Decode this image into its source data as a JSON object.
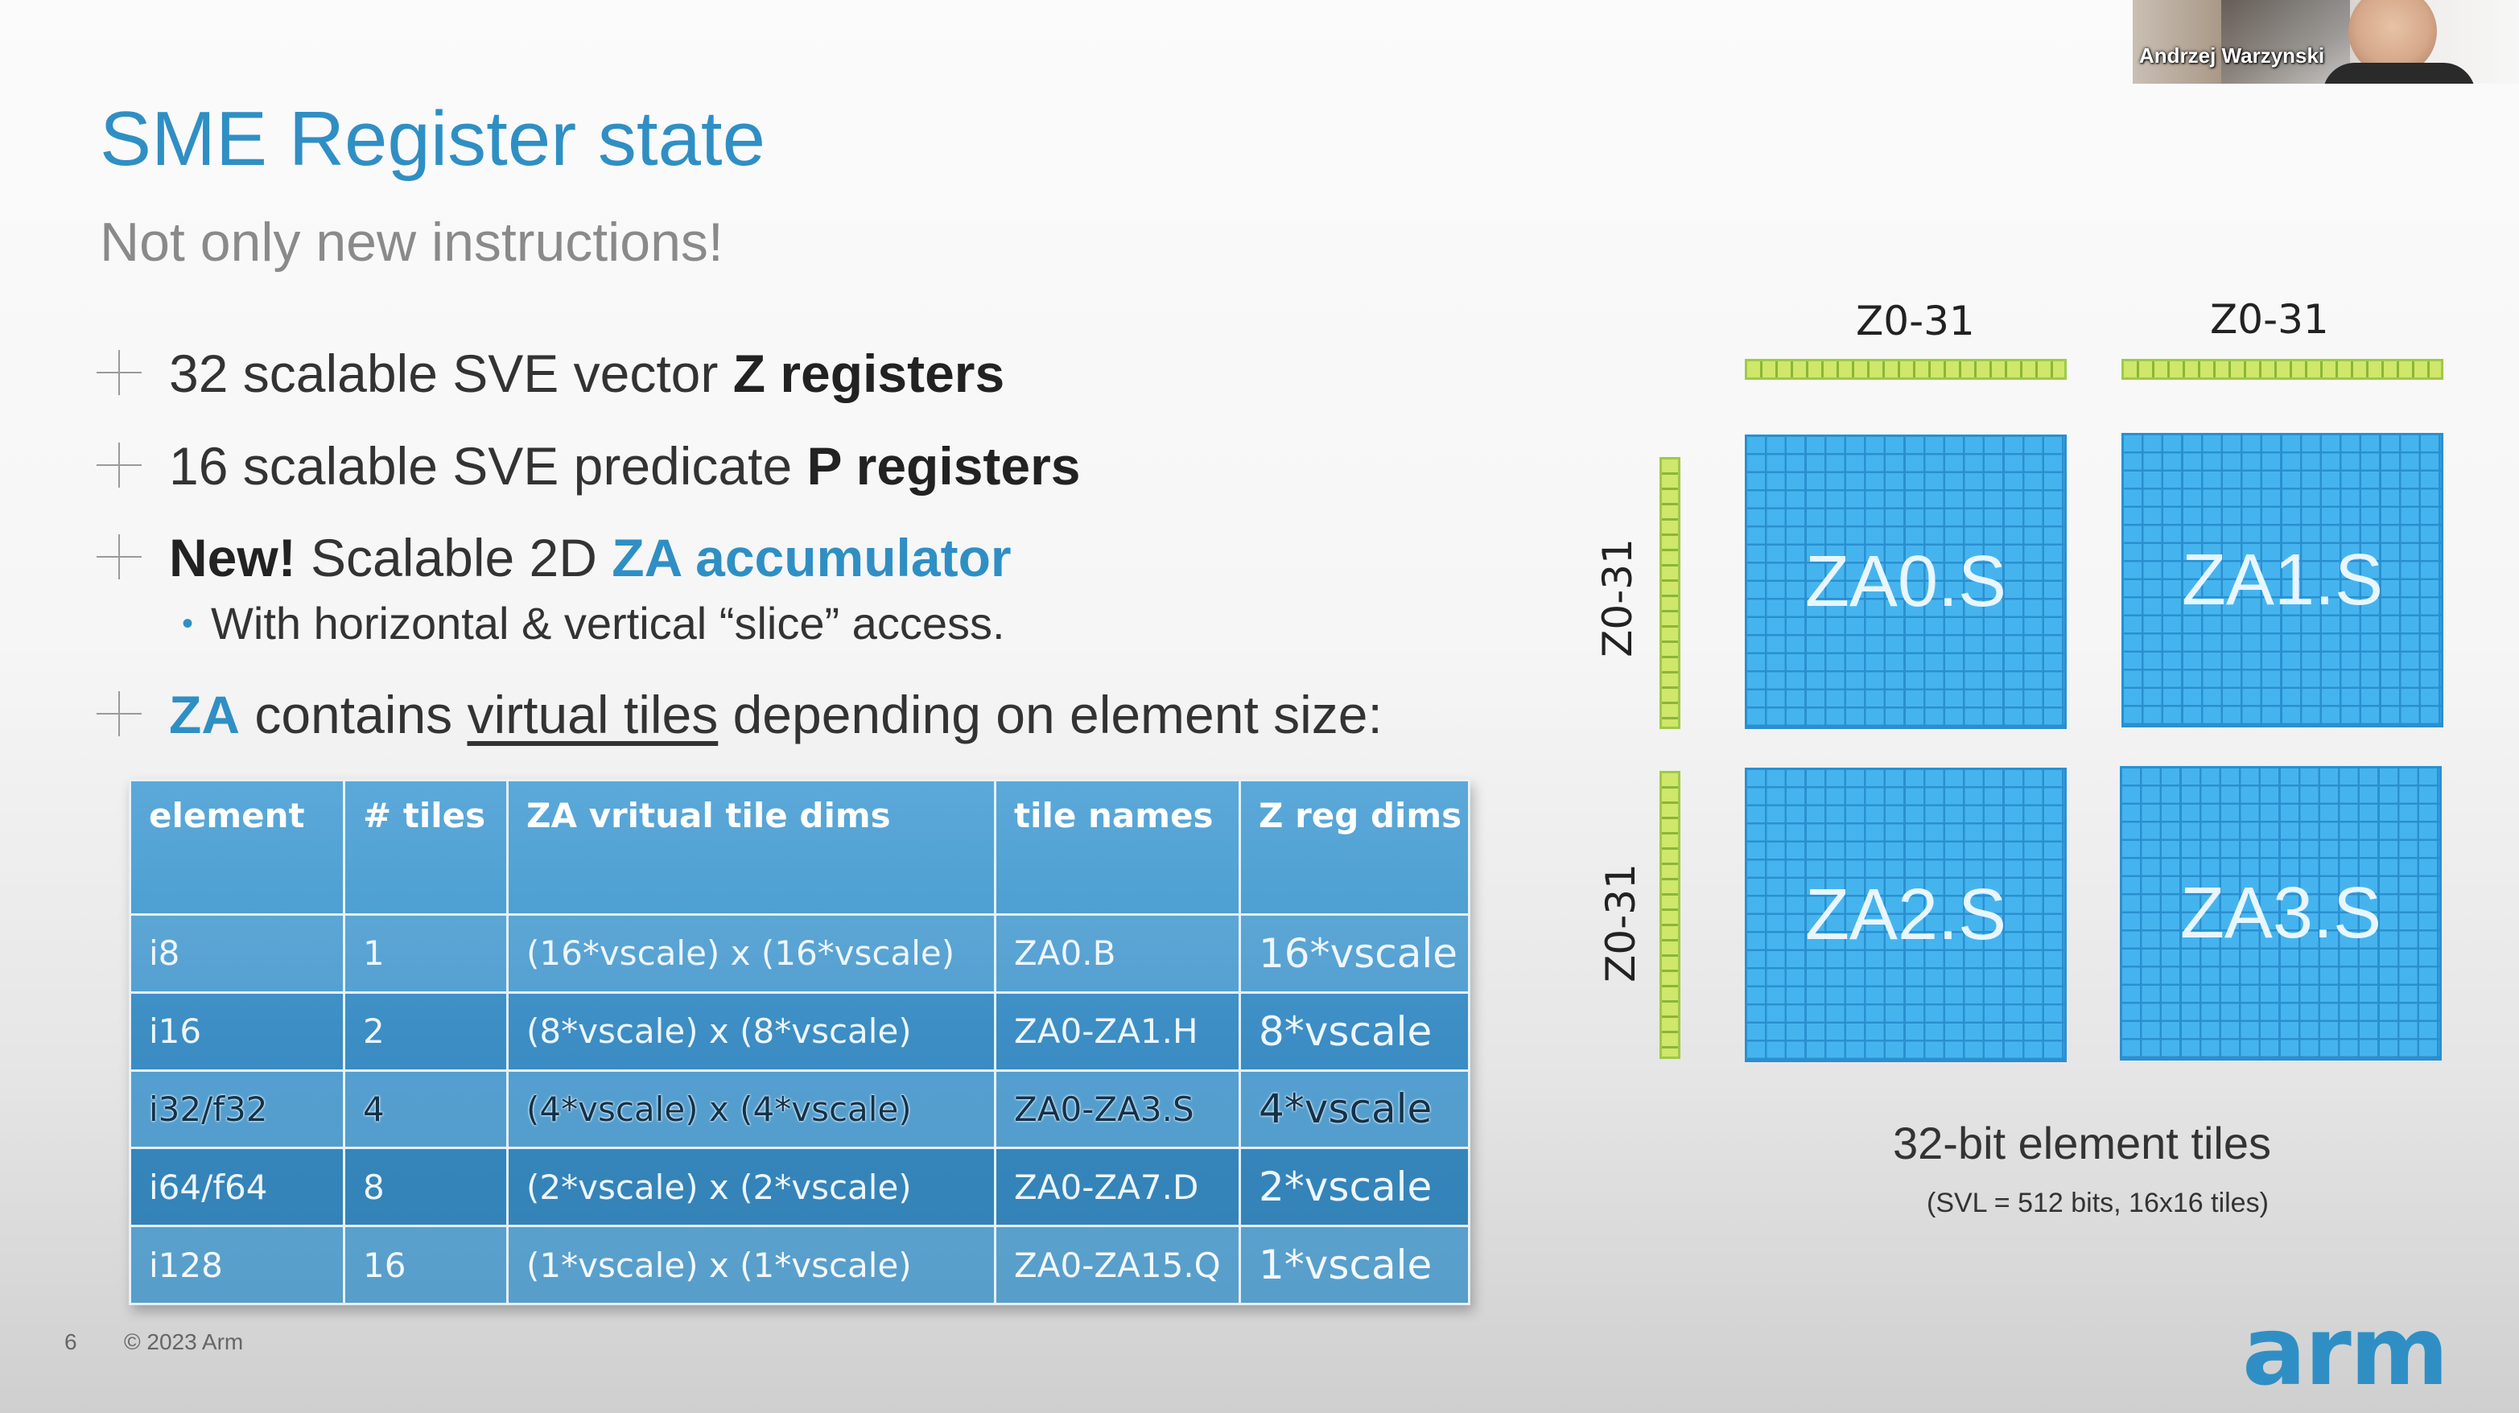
{
  "slide": {
    "title": "SME Register state",
    "subtitle": "Not only new instructions!",
    "bullets": [
      {
        "pre": "32 scalable SVE vector ",
        "bold": "Z registers"
      },
      {
        "pre": "16 scalable SVE predicate ",
        "bold": "P registers"
      },
      {
        "bold_new": "New!",
        "mid": " Scalable 2D ",
        "blue": "ZA accumulator"
      },
      {
        "blue": "ZA",
        "mid": " contains ",
        "underline": "virtual tiles",
        "post": " depending on element size:"
      }
    ],
    "sub_bullet": "With horizontal & vertical “slice” access.",
    "table": {
      "headers": [
        "element",
        "# tiles",
        "ZA vritual tile dims",
        "tile names",
        "Z reg dims"
      ],
      "rows": [
        [
          "i8",
          "1",
          "(16*vscale) x (16*vscale)",
          "ZA0.B",
          "16*vscale"
        ],
        [
          "i16",
          "2",
          "(8*vscale) x (8*vscale)",
          "ZA0-ZA1.H",
          "8*vscale"
        ],
        [
          "i32/f32",
          "4",
          "(4*vscale) x (4*vscale)",
          "ZA0-ZA3.S",
          "4*vscale"
        ],
        [
          "i64/f64",
          "8",
          "(2*vscale) x (2*vscale)",
          "ZA0-ZA7.D",
          "2*vscale"
        ],
        [
          "i128",
          "16",
          "(1*vscale) x (1*vscale)",
          "ZA0-ZA15.Q",
          "1*vscale"
        ]
      ]
    },
    "diagram": {
      "z_label": "Z0-31",
      "tiles": [
        "ZA0.S",
        "ZA1.S",
        "ZA2.S",
        "ZA3.S"
      ],
      "caption": "32-bit element tiles",
      "caption_sub": "(SVL = 512 bits, 16x16 tiles)"
    },
    "footer": {
      "page_number": "6",
      "copyright": "© 2023 Arm",
      "logo": "arm"
    }
  },
  "webcam": {
    "presenter_name": "Andrzej Warzynski"
  },
  "colors": {
    "accent_blue": "#2f8fc4",
    "tile_blue": "#45b4ee",
    "bar_green": "#cfe76a",
    "table_blue": "#4296cc"
  }
}
